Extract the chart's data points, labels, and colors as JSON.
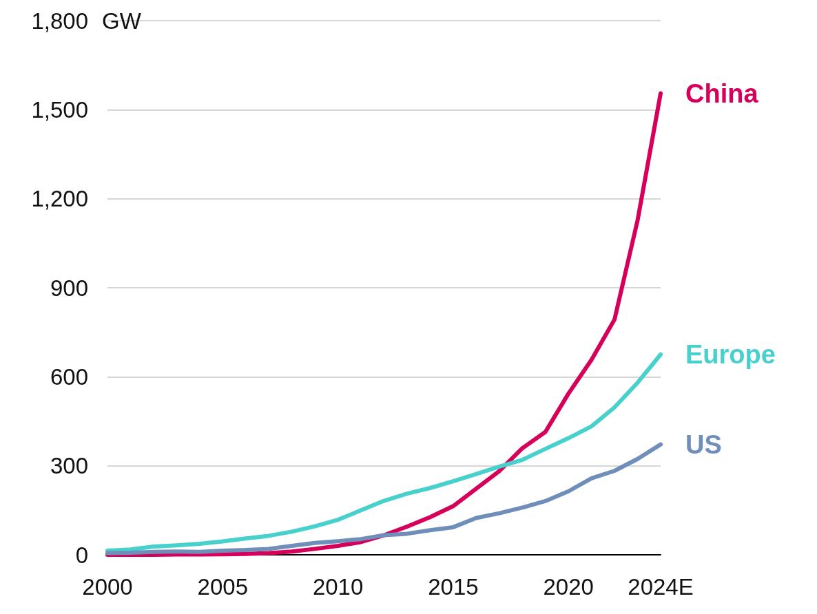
{
  "chart_data": {
    "type": "line",
    "ylabel": "GW",
    "x": [
      2000,
      2001,
      2002,
      2003,
      2004,
      2005,
      2006,
      2007,
      2008,
      2009,
      2010,
      2011,
      2012,
      2013,
      2014,
      2015,
      2016,
      2017,
      2018,
      2019,
      2020,
      2021,
      2022,
      2023,
      2024
    ],
    "series": [
      {
        "name": "China",
        "color": "#d6005a",
        "values": [
          0,
          0,
          0,
          1,
          1,
          2,
          3,
          6,
          11,
          20,
          30,
          43,
          66,
          95,
          127,
          164,
          223,
          282,
          359,
          414,
          543,
          657,
          793,
          1127,
          1555
        ]
      },
      {
        "name": "Europe",
        "color": "#48d1cc",
        "values": [
          14,
          18,
          28,
          32,
          37,
          45,
          55,
          64,
          78,
          96,
          118,
          150,
          182,
          206,
          225,
          248,
          272,
          297,
          320,
          357,
          393,
          433,
          497,
          580,
          675
        ]
      },
      {
        "name": "US",
        "color": "#6f8fba",
        "values": [
          6,
          7,
          10,
          11,
          10,
          14,
          16,
          20,
          30,
          40,
          46,
          53,
          66,
          71,
          83,
          93,
          124,
          140,
          159,
          181,
          214,
          258,
          283,
          323,
          372
        ]
      }
    ],
    "xlim": [
      2000,
      2024
    ],
    "xticks": [
      2000,
      2005,
      2010,
      2015,
      2020,
      {
        "value": 2024,
        "label": "2024E"
      }
    ],
    "ylim": [
      0,
      1800
    ],
    "yticks": [
      0,
      300,
      600,
      900,
      {
        "value": 1200,
        "label": "1,200"
      },
      {
        "value": 1500,
        "label": "1,500"
      },
      {
        "value": 1800,
        "label": "1,800"
      }
    ],
    "grid": "y",
    "legend": false,
    "marker": "none",
    "line_style": "solid"
  }
}
